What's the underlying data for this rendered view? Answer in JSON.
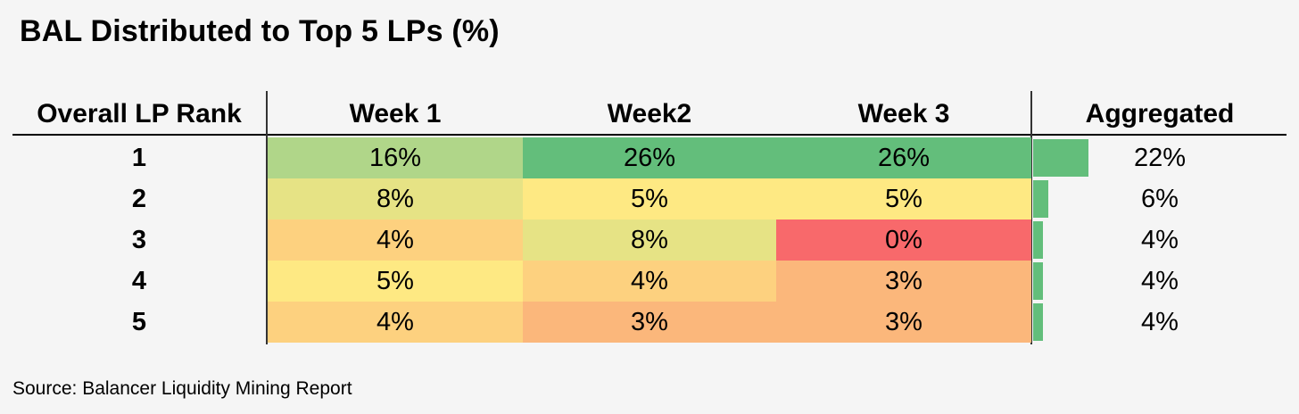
{
  "title": "BAL Distributed to Top 5 LPs (%)",
  "source": "Source: Balancer Liquidity Mining Report",
  "chart_data": {
    "type": "table",
    "title": "BAL Distributed to Top 5 LPs (%)",
    "columns": [
      "Overall LP Rank",
      "Week 1",
      "Week2",
      "Week 3",
      "Aggregated"
    ],
    "rows": [
      {
        "rank": "1",
        "week1": "16%",
        "week2": "26%",
        "week3": "26%",
        "aggregated": "22%",
        "agg_value": 22,
        "colors": [
          "#b0d689",
          "#63be7b",
          "#63be7b"
        ]
      },
      {
        "rank": "2",
        "week1": "8%",
        "week2": "5%",
        "week3": "5%",
        "aggregated": "6%",
        "agg_value": 6,
        "colors": [
          "#e6e385",
          "#fee983",
          "#fee983"
        ]
      },
      {
        "rank": "3",
        "week1": "4%",
        "week2": "8%",
        "week3": "0%",
        "aggregated": "4%",
        "agg_value": 4,
        "colors": [
          "#fdd17f",
          "#e6e385",
          "#f8696b"
        ]
      },
      {
        "rank": "4",
        "week1": "5%",
        "week2": "4%",
        "week3": "3%",
        "aggregated": "4%",
        "agg_value": 4,
        "colors": [
          "#fee983",
          "#fdd17f",
          "#fbb77b"
        ]
      },
      {
        "rank": "5",
        "week1": "4%",
        "week2": "3%",
        "week3": "3%",
        "aggregated": "4%",
        "agg_value": 4,
        "colors": [
          "#fdd17f",
          "#fbb77b",
          "#fbb77b"
        ]
      }
    ],
    "agg_bar_color": "#63be7b",
    "agg_max": 22
  }
}
